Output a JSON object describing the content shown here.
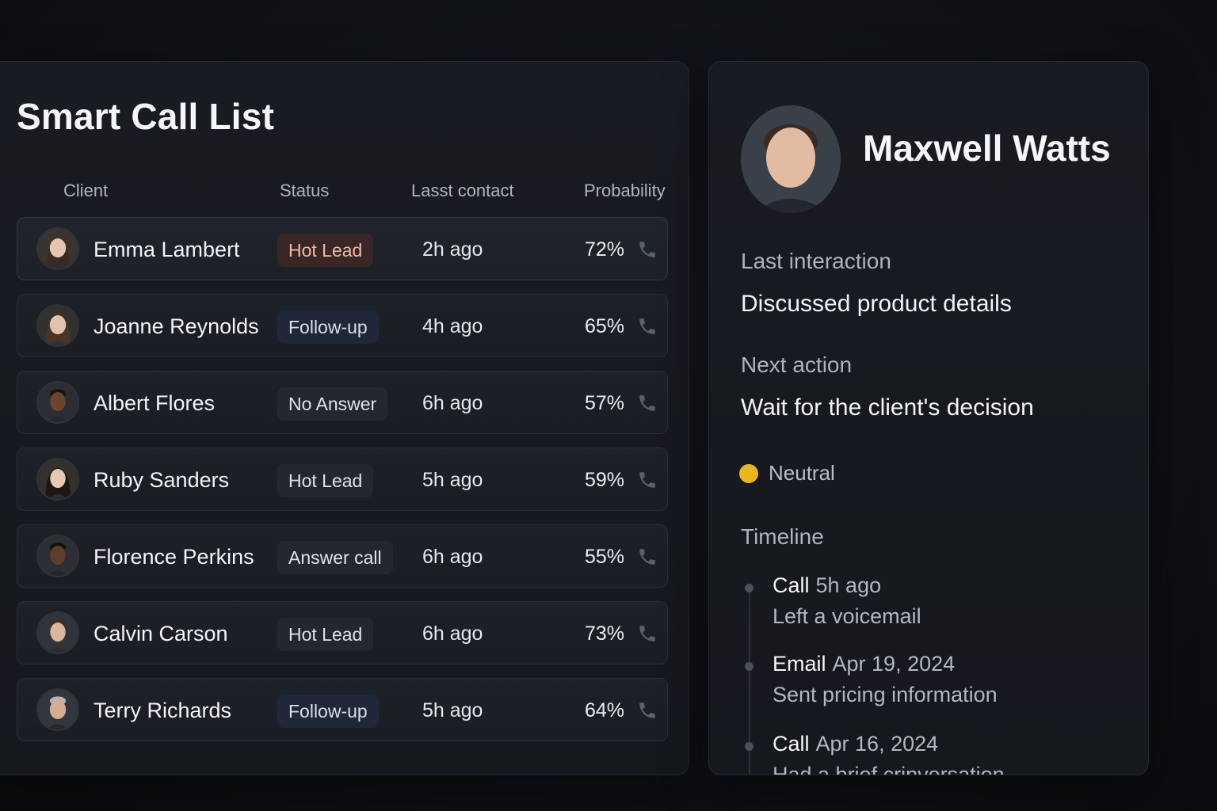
{
  "list": {
    "title": "Smart Call List",
    "columns": {
      "client": "Client",
      "status": "Status",
      "last_contact": "Lasst contact",
      "probability": "Probability"
    },
    "rows": [
      {
        "name": "Emma Lambert",
        "status": "Hot Lead",
        "last_contact": "2h ago",
        "probability": "72%"
      },
      {
        "name": "Joanne Reynolds",
        "status": "Follow-up",
        "last_contact": "4h ago",
        "probability": "65%"
      },
      {
        "name": "Albert Flores",
        "status": "No Answer",
        "last_contact": "6h ago",
        "probability": "57%"
      },
      {
        "name": "Ruby Sanders",
        "status": "Hot Lead",
        "last_contact": "5h ago",
        "probability": "59%"
      },
      {
        "name": "Florence Perkins",
        "status": "Answer call",
        "last_contact": "6h ago",
        "probability": "55%"
      },
      {
        "name": "Calvin Carson",
        "status": "Hot Lead",
        "last_contact": "6h ago",
        "probability": "73%"
      },
      {
        "name": "Terry Richards",
        "status": "Follow-up",
        "last_contact": "5h ago",
        "probability": "64%"
      }
    ],
    "row_icon": "phone-icon"
  },
  "detail": {
    "name": "Maxwell Watts",
    "last_interaction_label": "Last interaction",
    "last_interaction_value": "Discussed product details",
    "next_action_label": "Next action",
    "next_action_value": "Wait for the client's decision",
    "sentiment": "Neutral",
    "sentiment_color": "#e9b520",
    "timeline_label": "Timeline",
    "timeline": [
      {
        "type": "Call",
        "time": "5h ago",
        "desc": "Left a voicemail"
      },
      {
        "type": "Email",
        "time": "Apr 19, 2024",
        "desc": "Sent pricing information"
      },
      {
        "type": "Call",
        "time": "Apr 16, 2024",
        "desc": "Had a brief crinversation"
      }
    ]
  }
}
